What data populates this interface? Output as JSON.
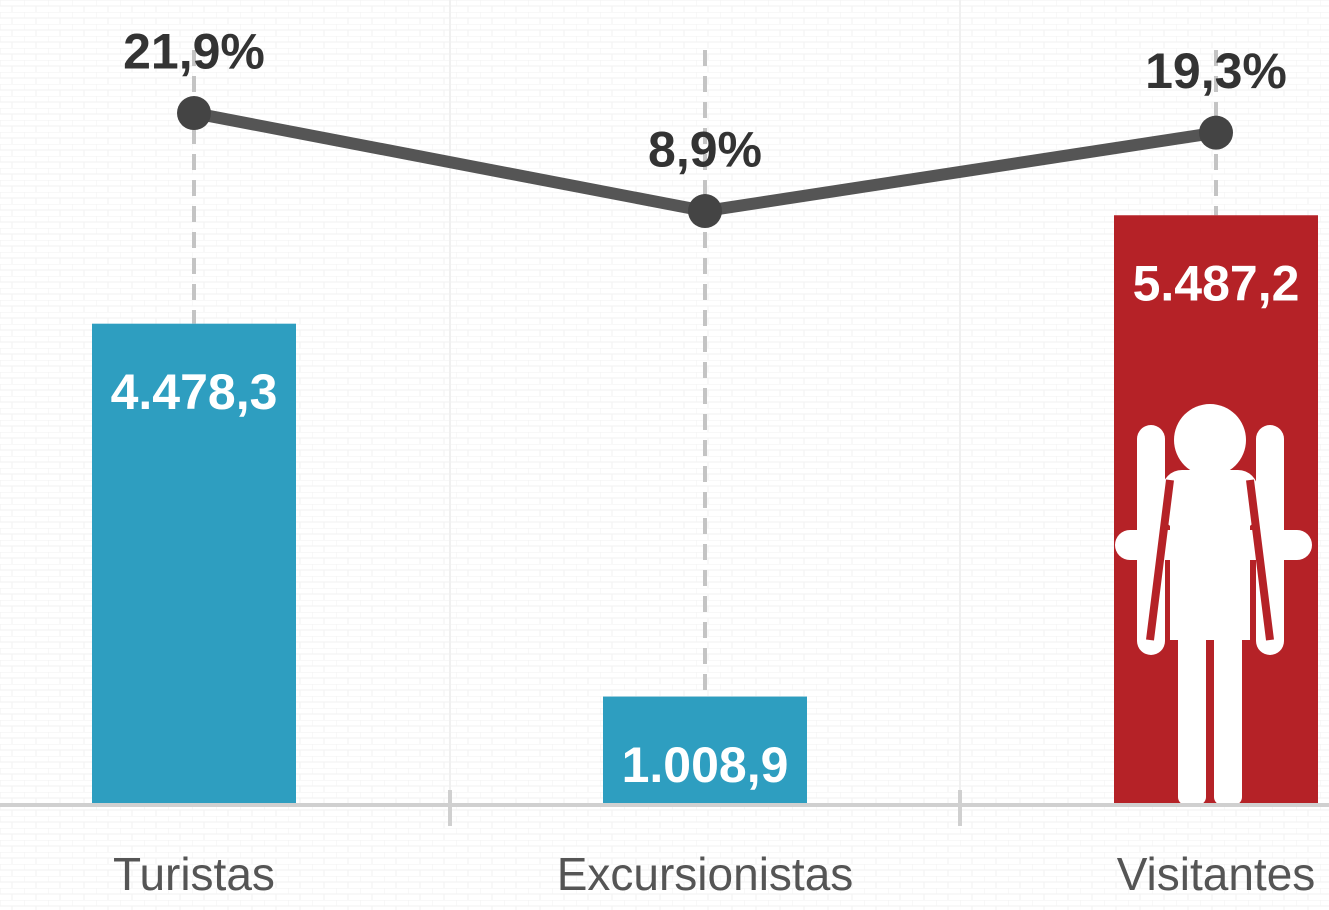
{
  "chart_data": {
    "type": "bar",
    "categories": [
      "Turistas",
      "Excursionistas",
      "Visitantes"
    ],
    "ylim": [
      0,
      7490
    ],
    "y2lim": [
      -69.9,
      36.9
    ],
    "series": [
      {
        "type": "bar",
        "colors": [
          "#2e9ec0",
          "#2e9ec0",
          "#b52227"
        ],
        "values": [
          4478.3,
          1008.9,
          5487.2
        ],
        "value_labels": [
          "4.478,3",
          "1.008,9",
          "5.487,2"
        ]
      },
      {
        "type": "line",
        "axis": "y2",
        "color": "#555555",
        "values": [
          21.9,
          8.9,
          19.3
        ],
        "value_labels": [
          "21,9%",
          "8,9%",
          "19,3%"
        ]
      }
    ]
  }
}
